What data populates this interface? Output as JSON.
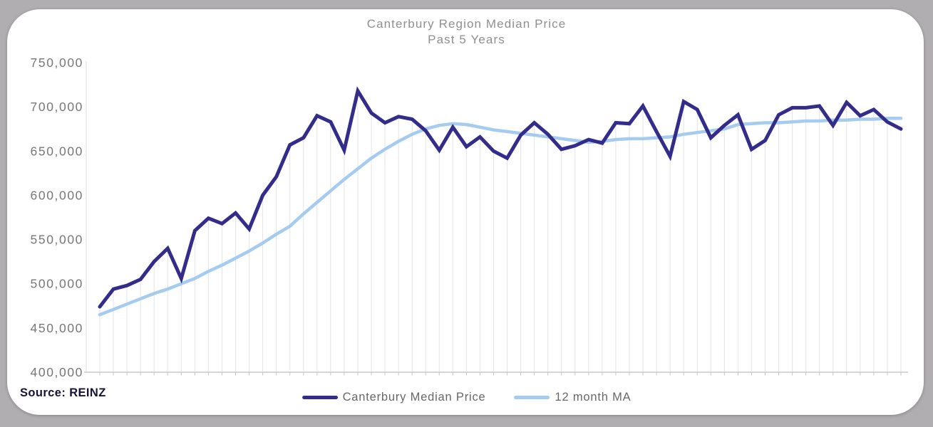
{
  "window": {
    "background_color": "#b1aeb2",
    "card_color": "#ffffff"
  },
  "header": {
    "title": "Canterbury Region Median Price",
    "subtitle": "Past 5 Years"
  },
  "legend": {
    "items": [
      {
        "label": "Canterbury Median Price",
        "color": "#332c8a"
      },
      {
        "label": "12 month MA",
        "color": "#a5cbf0"
      }
    ]
  },
  "footer": {
    "source_note": "Source: REINZ"
  },
  "chart_data": {
    "type": "line",
    "title": "Canterbury Region Median Price",
    "subtitle": "Past 5 Years",
    "xlabel": "",
    "ylabel": "",
    "x_axis": {
      "points": 60,
      "tick_labels_visible": false,
      "description": "monthly observations over the past 5 years"
    },
    "ylim": [
      400000,
      750000
    ],
    "y_ticks": [
      750000,
      700000,
      650000,
      600000,
      550000,
      500000,
      450000,
      400000
    ],
    "grid": "vertical drop-lines from median price points down to baseline; no horizontal gridlines",
    "legend_position": "bottom center",
    "series": [
      {
        "name": "Canterbury Median Price",
        "color": "#332c8a",
        "values": [
          474000,
          494000,
          498000,
          505000,
          525000,
          540000,
          506000,
          560000,
          574000,
          568000,
          580000,
          562000,
          600000,
          621000,
          657000,
          665000,
          690000,
          683000,
          651000,
          718000,
          693000,
          682000,
          689000,
          686000,
          673000,
          651000,
          677000,
          655000,
          666000,
          650000,
          642000,
          668000,
          682000,
          669000,
          652000,
          656000,
          663000,
          659000,
          682000,
          681000,
          701000,
          672000,
          644000,
          706000,
          697000,
          665000,
          679000,
          691000,
          652000,
          662000,
          691000,
          699000,
          699000,
          701000,
          679000,
          705000,
          690000,
          697000,
          683000,
          675000
        ]
      },
      {
        "name": "12 month MA",
        "color": "#a5cbf0",
        "values": [
          465000,
          471000,
          477000,
          483000,
          489000,
          494000,
          500000,
          506000,
          514000,
          521000,
          529000,
          537000,
          546000,
          556000,
          565000,
          579000,
          592000,
          605000,
          618000,
          630000,
          642000,
          652000,
          661000,
          669000,
          675000,
          679000,
          681000,
          680000,
          677000,
          674000,
          672000,
          670000,
          668000,
          666000,
          664000,
          662000,
          660000,
          661000,
          663000,
          664000,
          664000,
          665000,
          666000,
          669000,
          671000,
          673000,
          675000,
          680000,
          681000,
          682000,
          682000,
          683000,
          684000,
          684000,
          685000,
          685000,
          686000,
          686000,
          687000,
          687000
        ]
      }
    ],
    "source": "Source: REINZ"
  }
}
